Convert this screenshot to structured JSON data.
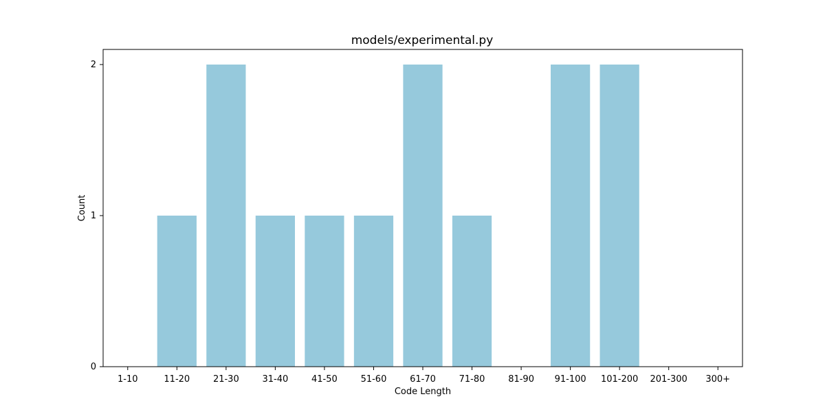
{
  "chart_data": {
    "type": "bar",
    "title": "models/experimental.py",
    "xlabel": "Code Length",
    "ylabel": "Count",
    "categories": [
      "1-10",
      "11-20",
      "21-30",
      "31-40",
      "41-50",
      "51-60",
      "61-70",
      "71-80",
      "81-90",
      "91-100",
      "101-200",
      "201-300",
      "300+"
    ],
    "values": [
      0,
      1,
      2,
      1,
      1,
      1,
      2,
      1,
      0,
      2,
      2,
      0,
      0
    ],
    "ylim": [
      0,
      2.1
    ],
    "yticks": [
      0,
      1,
      2
    ],
    "grid": false,
    "legend": "none",
    "bar_color": "#96c9dc"
  }
}
